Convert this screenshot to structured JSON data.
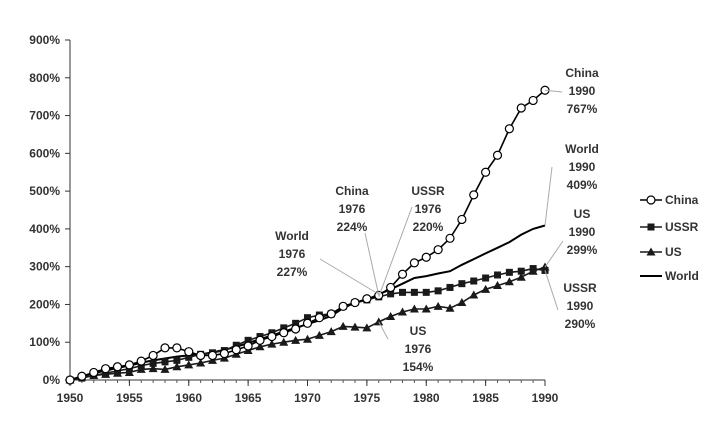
{
  "chart_data": {
    "type": "line",
    "title": "",
    "xlabel": "",
    "ylabel": "",
    "xlim": [
      1950,
      1990
    ],
    "ylim": [
      0,
      900
    ],
    "x_ticks": [
      1950,
      1955,
      1960,
      1965,
      1970,
      1975,
      1980,
      1985,
      1990
    ],
    "y_ticks": [
      0,
      100,
      200,
      300,
      400,
      500,
      600,
      700,
      800,
      900
    ],
    "y_tick_labels": [
      "0%",
      "100%",
      "200%",
      "300%",
      "400%",
      "500%",
      "600%",
      "700%",
      "800%",
      "900%"
    ],
    "grid": false,
    "legend_position": "right",
    "x": [
      1950,
      1951,
      1952,
      1953,
      1954,
      1955,
      1956,
      1957,
      1958,
      1959,
      1960,
      1961,
      1962,
      1963,
      1964,
      1965,
      1966,
      1967,
      1968,
      1969,
      1970,
      1971,
      1972,
      1973,
      1974,
      1975,
      1976,
      1977,
      1978,
      1979,
      1980,
      1981,
      1982,
      1983,
      1984,
      1985,
      1986,
      1987,
      1988,
      1989,
      1990
    ],
    "series": [
      {
        "name": "China",
        "marker": "open-circle",
        "color": "#000000",
        "values": [
          0,
          10,
          20,
          30,
          35,
          40,
          50,
          65,
          85,
          85,
          75,
          65,
          65,
          70,
          80,
          90,
          105,
          115,
          125,
          135,
          150,
          165,
          175,
          195,
          205,
          215,
          224,
          245,
          280,
          310,
          325,
          345,
          375,
          425,
          490,
          550,
          595,
          665,
          720,
          740,
          767
        ]
      },
      {
        "name": "USSR",
        "marker": "filled-square",
        "color": "#1a1a1a",
        "values": [
          0,
          5,
          12,
          18,
          24,
          30,
          38,
          44,
          48,
          52,
          60,
          68,
          72,
          78,
          92,
          105,
          115,
          125,
          138,
          150,
          165,
          172,
          175,
          195,
          205,
          212,
          220,
          228,
          232,
          232,
          232,
          236,
          245,
          255,
          262,
          270,
          278,
          285,
          288,
          295,
          290
        ]
      },
      {
        "name": "US",
        "marker": "filled-triangle",
        "color": "#1a1a1a",
        "values": [
          0,
          8,
          12,
          15,
          18,
          20,
          28,
          30,
          28,
          35,
          40,
          45,
          52,
          58,
          68,
          78,
          88,
          95,
          100,
          105,
          108,
          118,
          128,
          142,
          140,
          138,
          154,
          168,
          180,
          188,
          188,
          195,
          190,
          205,
          225,
          240,
          250,
          260,
          272,
          288,
          299
        ]
      },
      {
        "name": "World",
        "marker": "none",
        "color": "#000000",
        "values": [
          0,
          10,
          18,
          25,
          32,
          38,
          46,
          52,
          57,
          62,
          65,
          68,
          73,
          80,
          88,
          98,
          108,
          118,
          128,
          138,
          148,
          158,
          170,
          190,
          205,
          212,
          227,
          240,
          255,
          270,
          275,
          282,
          288,
          305,
          320,
          335,
          350,
          365,
          385,
          400,
          409
        ]
      }
    ],
    "annotations": [
      {
        "lines": [
          "China",
          "1990",
          "767%"
        ],
        "series": "China",
        "x": 1990
      },
      {
        "lines": [
          "World",
          "1990",
          "409%"
        ],
        "series": "World",
        "x": 1990
      },
      {
        "lines": [
          "US",
          "1990",
          "299%"
        ],
        "series": "US",
        "x": 1990
      },
      {
        "lines": [
          "USSR",
          "1990",
          "290%"
        ],
        "series": "USSR",
        "x": 1990
      },
      {
        "lines": [
          "China",
          "1976",
          "224%"
        ],
        "series": "China",
        "x": 1976
      },
      {
        "lines": [
          "USSR",
          "1976",
          "220%"
        ],
        "series": "USSR",
        "x": 1976
      },
      {
        "lines": [
          "World",
          "1976",
          "227%"
        ],
        "series": "World",
        "x": 1976
      },
      {
        "lines": [
          "US",
          "1976",
          "154%"
        ],
        "series": "US",
        "x": 1976
      }
    ]
  }
}
